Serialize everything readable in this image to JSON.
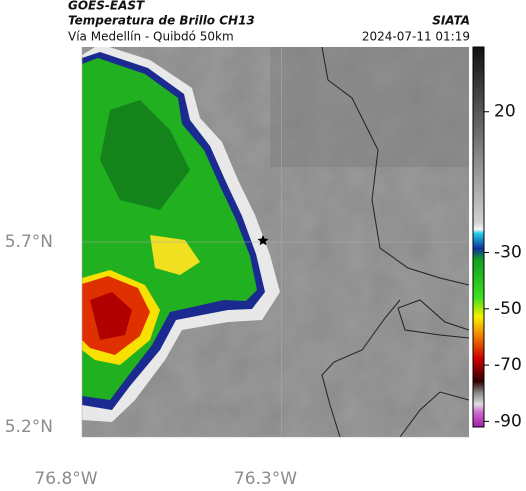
{
  "header": {
    "title": "GOES-EAST",
    "subtitle": "Temperatura de Brillo CH13",
    "route": "Vía Medellín - Quibdó 50km",
    "agency": "SIATA",
    "timestamp": "2024-07-11 01:19"
  },
  "map": {
    "xlim": [
      -76.8,
      -75.83
    ],
    "ylim": [
      5.2,
      6.2
    ],
    "xticks": [
      {
        "value": -76.8,
        "label": "76.8°W"
      },
      {
        "value": -76.3,
        "label": "76.3°W"
      }
    ],
    "yticks": [
      {
        "value": 5.7,
        "label": "5.7°N"
      },
      {
        "value": 5.2,
        "label": "5.2°N"
      }
    ],
    "grid": true
  },
  "colorbar": {
    "clim": [
      -92,
      43
    ],
    "ticks": [
      20,
      -30,
      -50,
      -70,
      -90
    ]
  }
}
